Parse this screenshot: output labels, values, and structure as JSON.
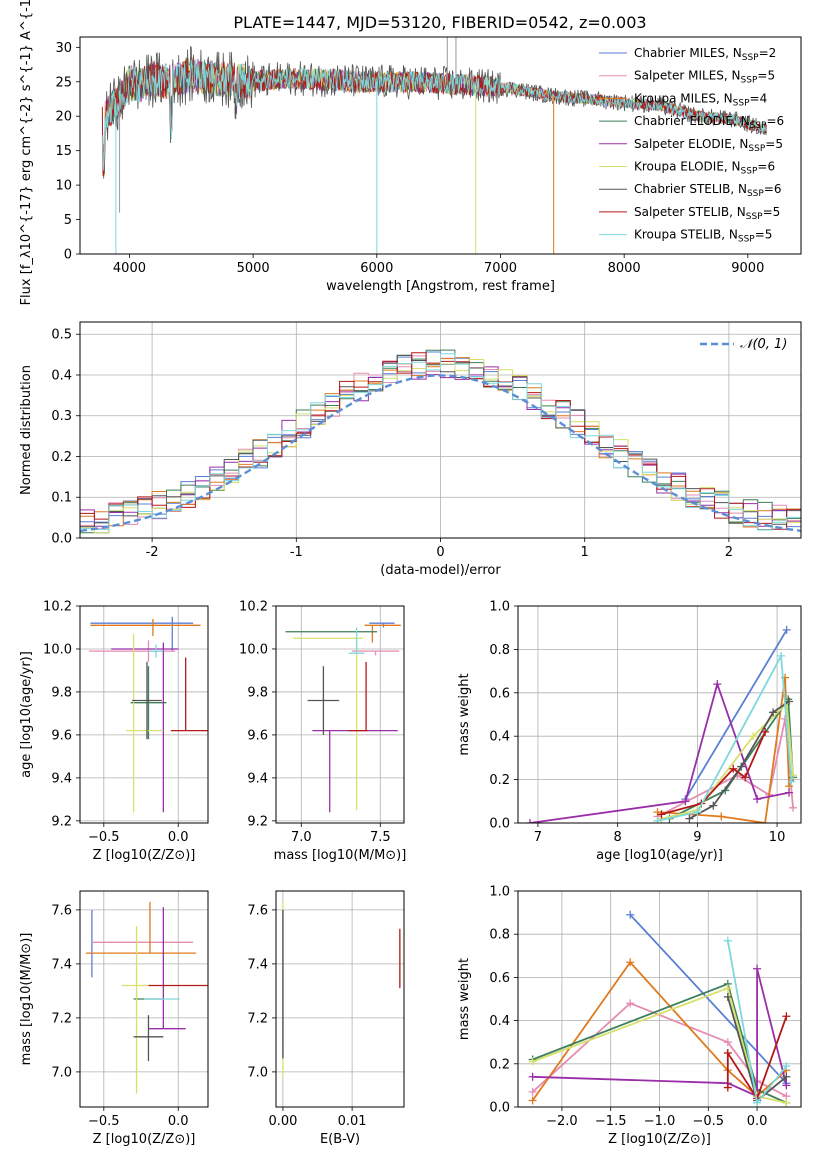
{
  "figure": {
    "title": "PLATE=1447, MJD=53120, FIBERID=0542, z=0.003"
  },
  "chart_data": [
    {
      "id": "spectrum",
      "type": "line",
      "xlabel": "wavelength [Angstrom, rest frame]",
      "ylabel": "Flux [f_λ10^{-17} erg cm^{-2} s^{-1} A^{-1}]",
      "xlim": [
        3600,
        9430
      ],
      "ylim": [
        0,
        31.5
      ],
      "xticks": [
        4000,
        5000,
        6000,
        7000,
        8000,
        9000
      ],
      "yticks": [
        0,
        5,
        10,
        15,
        20,
        25,
        30
      ],
      "grid": false,
      "legend_position": "top-right",
      "series": [
        {
          "name": "Chabrier MILES, N_SSP=2",
          "color": "#5a7fd6"
        },
        {
          "name": "Salpeter MILES, N_SSP=5",
          "color": "#e58cb2"
        },
        {
          "name": "Kroupa MILES, N_SSP=4",
          "color": "#e07a1f"
        },
        {
          "name": "Chabrier ELODIE, N_SSP=6",
          "color": "#3c7f58"
        },
        {
          "name": "Salpeter ELODIE, N_SSP=5",
          "color": "#9a2ea8"
        },
        {
          "name": "Kroupa ELODIE, N_SSP=6",
          "color": "#d6e06a"
        },
        {
          "name": "Chabrier STELIB, N_SSP=6",
          "color": "#555555"
        },
        {
          "name": "Salpeter STELIB, N_SSP=5",
          "color": "#b51818"
        },
        {
          "name": "Kroupa STELIB, N_SSP=5",
          "color": "#7fd8dc"
        }
      ],
      "continuum": {
        "x": [
          3780,
          3850,
          3950,
          4000,
          4100,
          4200,
          4300,
          4500,
          4700,
          5000,
          5300,
          5600,
          5900,
          6200,
          6500,
          6800,
          7100,
          7400,
          7700,
          8000,
          8300,
          8600,
          8900,
          9150
        ],
        "y": [
          19,
          21,
          23,
          25,
          24.5,
          25.5,
          25,
          26,
          25.5,
          25,
          25.5,
          25.3,
          25,
          25,
          24.8,
          24.5,
          24,
          23,
          22.5,
          22,
          21.5,
          20,
          19.5,
          18
        ]
      },
      "spikes": [
        {
          "x": 3890,
          "y": 0
        },
        {
          "x": 3920,
          "y": 6
        },
        {
          "x": 6000,
          "y": 0
        },
        {
          "x": 6800,
          "y": 0
        },
        {
          "x": 7430,
          "y": 0
        },
        {
          "x": 6570,
          "y": 31.5
        },
        {
          "x": 6640,
          "y": 31.5
        }
      ]
    },
    {
      "id": "residuals",
      "type": "bar",
      "xlabel": "(data-model)/error",
      "ylabel": "Normed distribution",
      "xlim": [
        -2.5,
        2.5
      ],
      "ylim": [
        0,
        0.53
      ],
      "xticks": [
        -2,
        -1,
        0,
        1,
        2
      ],
      "yticks": [
        0,
        0.1,
        0.2,
        0.3,
        0.4,
        0.5
      ],
      "grid": true,
      "legend_position": "top-right",
      "legend": "𝒩(0, 1)",
      "gaussian_color": "#5a8fd6",
      "bin_width": 0.1
    },
    {
      "id": "age-vs-Z",
      "type": "scatter",
      "xlabel": "Z [log10(Z/Z⊙)]",
      "ylabel": "age  [log10(age/yr)]",
      "xlim": [
        -0.66,
        0.2
      ],
      "ylim": [
        9.19,
        10.2
      ],
      "xticks": [
        -0.5,
        0.0
      ],
      "xtick_labels": [
        "−0.5",
        "0.0"
      ],
      "yticks": [
        9.2,
        9.4,
        9.6,
        9.8,
        10.0,
        10.2
      ],
      "grid": true,
      "points": [
        {
          "x": -0.04,
          "xerr": [
            0.55,
            0.14
          ],
          "y": 10.12,
          "yerr": [
            0.13,
            0.03
          ],
          "color": "#5a7fd6"
        },
        {
          "x": -0.2,
          "xerr": [
            0.4,
            0.18
          ],
          "y": 9.99,
          "yerr": [
            0.05,
            0.05
          ],
          "color": "#e58cb2"
        },
        {
          "x": -0.17,
          "xerr": [
            0.42,
            0.32
          ],
          "y": 10.11,
          "yerr": [
            0.05,
            0.03
          ],
          "color": "#e07a1f"
        },
        {
          "x": -0.2,
          "xerr": [
            0.12,
            0.12
          ],
          "y": 9.75,
          "yerr": [
            0.17,
            0.17
          ],
          "color": "#3c7f58"
        },
        {
          "x": -0.1,
          "xerr": [
            0.35,
            0.1
          ],
          "y": 10.0,
          "yerr": [
            0.76,
            0.03
          ],
          "color": "#9a2ea8"
        },
        {
          "x": -0.3,
          "xerr": [
            0.05,
            0.2
          ],
          "y": 9.62,
          "yerr": [
            0.38,
            0.45
          ],
          "color": "#d6e06a"
        },
        {
          "x": -0.21,
          "xerr": [
            0.1,
            0.1
          ],
          "y": 9.76,
          "yerr": [
            0.18,
            0.18
          ],
          "color": "#555555"
        },
        {
          "x": 0.05,
          "xerr": [
            0.1,
            0.15
          ],
          "y": 9.62,
          "yerr": [
            0.0,
            0.34
          ],
          "color": "#b51818"
        },
        {
          "x": -0.15,
          "xerr": [
            0.05,
            0.05
          ],
          "y": 9.99,
          "yerr": [
            0.03,
            0.03
          ],
          "color": "#7fd8dc"
        }
      ]
    },
    {
      "id": "age-vs-mass",
      "type": "scatter",
      "xlabel": "mass [log10(M/M⊙)]",
      "ylabel": "",
      "xlim": [
        6.84,
        7.65
      ],
      "ylim": [
        9.19,
        10.2
      ],
      "xticks": [
        7.0,
        7.5
      ],
      "xtick_labels": [
        "7.0",
        "7.5"
      ],
      "yticks": [
        9.2,
        9.4,
        9.6,
        9.8,
        10.0,
        10.2
      ],
      "grid": true,
      "points": [
        {
          "x": 7.52,
          "xerr": [
            0.09,
            0.07
          ],
          "y": 10.12,
          "yerr": [
            0.02,
            0.0
          ],
          "color": "#5a7fd6"
        },
        {
          "x": 7.47,
          "xerr": [
            0.15,
            0.15
          ],
          "y": 9.99,
          "yerr": [
            0.02,
            0.0
          ],
          "color": "#e58cb2"
        },
        {
          "x": 7.45,
          "xerr": [
            0.05,
            0.18
          ],
          "y": 10.11,
          "yerr": [
            0.08,
            0.0
          ],
          "color": "#e07a1f"
        },
        {
          "x": 7.18,
          "xerr": [
            0.28,
            0.3
          ],
          "y": 10.08,
          "yerr": [
            0.0,
            0.0
          ],
          "color": "#3c7f58"
        },
        {
          "x": 7.18,
          "xerr": [
            0.11,
            0.43
          ],
          "y": 9.62,
          "yerr": [
            0.38,
            0.0
          ],
          "color": "#9a2ea8"
        },
        {
          "x": 7.35,
          "xerr": [
            0.4,
            0.04
          ],
          "y": 10.05,
          "yerr": [
            0.8,
            0.0
          ],
          "color": "#d6e06a"
        },
        {
          "x": 7.14,
          "xerr": [
            0.1,
            0.1
          ],
          "y": 9.76,
          "yerr": [
            0.16,
            0.16
          ],
          "color": "#555555"
        },
        {
          "x": 7.41,
          "xerr": [
            0.11,
            0.01
          ],
          "y": 9.62,
          "yerr": [
            0.0,
            0.32
          ],
          "color": "#b51818"
        },
        {
          "x": 7.35,
          "xerr": [
            0.05,
            0.05
          ],
          "y": 9.98,
          "yerr": [
            0.0,
            0.12
          ],
          "color": "#7fd8dc"
        }
      ]
    },
    {
      "id": "massweight-vs-age",
      "type": "line",
      "xlabel": "age  [log10(age/yr)]",
      "ylabel": "mass weight",
      "xlim": [
        6.75,
        10.3
      ],
      "ylim": [
        0,
        1.0
      ],
      "xticks": [
        7,
        8,
        9,
        10
      ],
      "yticks": [
        0,
        0.2,
        0.4,
        0.6,
        0.8,
        1.0
      ],
      "grid": true,
      "series": [
        {
          "color": "#5a7fd6",
          "x": [
            8.85,
            10.12
          ],
          "y": [
            0.11,
            0.89
          ]
        },
        {
          "color": "#e58cb2",
          "x": [
            8.5,
            9.5,
            9.9,
            10.1,
            10.2
          ],
          "y": [
            0.03,
            0.22,
            0.13,
            0.48,
            0.07
          ]
        },
        {
          "color": "#e07a1f",
          "x": [
            8.5,
            9.3,
            9.85,
            10.1,
            10.15
          ],
          "y": [
            0.05,
            0.03,
            0.0,
            0.67,
            0.17
          ]
        },
        {
          "color": "#3c7f58",
          "x": [
            8.65,
            9.35,
            10.14,
            10.2
          ],
          "y": [
            0.02,
            0.15,
            0.57,
            0.21
          ]
        },
        {
          "color": "#9a2ea8",
          "x": [
            6.9,
            8.85,
            9.25,
            9.75,
            10.15
          ],
          "y": [
            0.0,
            0.1,
            0.64,
            0.11,
            0.14
          ]
        },
        {
          "color": "#d6e06a",
          "x": [
            8.55,
            9.0,
            9.7,
            10.12,
            10.2
          ],
          "y": [
            0.02,
            0.06,
            0.4,
            0.55,
            0.22
          ]
        },
        {
          "color": "#555555",
          "x": [
            8.9,
            9.2,
            9.55,
            9.95,
            10.15
          ],
          "y": [
            0.02,
            0.08,
            0.26,
            0.51,
            0.56
          ]
        },
        {
          "color": "#b51818",
          "x": [
            8.55,
            9.05,
            9.45,
            9.6,
            9.85
          ],
          "y": [
            0.04,
            0.09,
            0.25,
            0.21,
            0.42
          ]
        },
        {
          "color": "#7fd8dc",
          "x": [
            8.5,
            9.0,
            10.05,
            10.18
          ],
          "y": [
            0.01,
            0.05,
            0.77,
            0.19
          ]
        }
      ]
    },
    {
      "id": "mass-vs-Z",
      "type": "scatter",
      "xlabel": "Z [log10(Z/Z⊙)]",
      "ylabel": "mass [log10(M/M⊙)]",
      "xlim": [
        -0.66,
        0.2
      ],
      "ylim": [
        6.87,
        7.67
      ],
      "xticks": [
        -0.5,
        0.0
      ],
      "xtick_labels": [
        "−0.5",
        "0.0"
      ],
      "yticks": [
        7.0,
        7.2,
        7.4,
        7.6
      ],
      "grid": true,
      "points": [
        {
          "x": -0.58,
          "xerr": [
            0.0,
            0.0
          ],
          "y": 7.47,
          "yerr": [
            0.12,
            0.13
          ],
          "color": "#5a7fd6"
        },
        {
          "x": -0.26,
          "xerr": [
            0.32,
            0.36
          ],
          "y": 7.48,
          "yerr": [
            0.0,
            0.0
          ],
          "color": "#e58cb2"
        },
        {
          "x": -0.19,
          "xerr": [
            0.43,
            0.31
          ],
          "y": 7.44,
          "yerr": [
            0.0,
            0.19
          ],
          "color": "#e07a1f"
        },
        {
          "x": -0.2,
          "xerr": [
            0.1,
            0.1
          ],
          "y": 7.27,
          "yerr": [
            0.0,
            0.0
          ],
          "color": "#3c7f58"
        },
        {
          "x": -0.1,
          "xerr": [
            0.1,
            0.15
          ],
          "y": 7.16,
          "yerr": [
            0.0,
            0.45
          ],
          "color": "#9a2ea8"
        },
        {
          "x": -0.28,
          "xerr": [
            0.1,
            0.1
          ],
          "y": 7.32,
          "yerr": [
            0.4,
            0.22
          ],
          "color": "#d6e06a"
        },
        {
          "x": -0.2,
          "xerr": [
            0.1,
            0.1
          ],
          "y": 7.13,
          "yerr": [
            0.09,
            0.08
          ],
          "color": "#555555"
        },
        {
          "x": 0.06,
          "xerr": [
            0.26,
            0.14
          ],
          "y": 7.32,
          "yerr": [
            0.0,
            0.0
          ],
          "color": "#b51818"
        },
        {
          "x": -0.13,
          "xerr": [
            0.1,
            0.14
          ],
          "y": 7.27,
          "yerr": [
            0.0,
            0.0
          ],
          "color": "#7fd8dc"
        }
      ]
    },
    {
      "id": "mass-vs-EBV",
      "type": "scatter",
      "xlabel": "E(B-V)",
      "ylabel": "",
      "xlim": [
        -0.001,
        0.0175
      ],
      "ylim": [
        6.87,
        7.67
      ],
      "xticks": [
        0.0,
        0.01
      ],
      "xtick_labels": [
        "0.00",
        "0.01"
      ],
      "yticks": [
        7.0,
        7.2,
        7.4,
        7.6
      ],
      "grid": true,
      "points": [
        {
          "x": 0.0,
          "y": 7.33,
          "yerr": [
            0.35,
            0.3
          ],
          "color": "#d6e06a"
        },
        {
          "x": 0.0,
          "y": 7.4,
          "yerr": [
            0.34,
            0.2
          ],
          "color": "#e58cb2"
        },
        {
          "x": 0.0,
          "y": 7.35,
          "yerr": [
            0.3,
            0.25
          ],
          "color": "#7fd8dc"
        },
        {
          "x": 0.0,
          "y": 7.3,
          "yerr": [
            0.25,
            0.3
          ],
          "color": "#555555"
        },
        {
          "x": 0.0169,
          "y": 7.42,
          "yerr": [
            0.11,
            0.11
          ],
          "color": "#b51818"
        }
      ]
    },
    {
      "id": "massweight-vs-Z",
      "type": "line",
      "xlabel": "Z [log10(Z/Z⊙)]",
      "ylabel": "mass weight",
      "xlim": [
        -2.45,
        0.45
      ],
      "ylim": [
        0,
        1.0
      ],
      "xticks": [
        -2.0,
        -1.5,
        -1.0,
        -0.5,
        0.0
      ],
      "xtick_labels": [
        "−2.0",
        "−1.5",
        "−1.0",
        "−0.5",
        "0.0"
      ],
      "yticks": [
        0,
        0.2,
        0.4,
        0.6,
        0.8,
        1.0
      ],
      "grid": true,
      "series": [
        {
          "color": "#5a7fd6",
          "x": [
            -1.3,
            0.3
          ],
          "y": [
            0.89,
            0.11
          ]
        },
        {
          "color": "#e58cb2",
          "x": [
            -2.3,
            -1.3,
            -0.3,
            0.0,
            0.3
          ],
          "y": [
            0.07,
            0.48,
            0.3,
            0.12,
            0.05
          ]
        },
        {
          "color": "#e07a1f",
          "x": [
            -2.3,
            -1.3,
            -0.3,
            0.0,
            0.3
          ],
          "y": [
            0.03,
            0.67,
            0.17,
            0.05,
            0.17
          ]
        },
        {
          "color": "#3c7f58",
          "x": [
            -2.3,
            -0.3,
            0.0,
            0.3
          ],
          "y": [
            0.22,
            0.57,
            0.08,
            0.02
          ]
        },
        {
          "color": "#9a2ea8",
          "x": [
            -2.3,
            -0.3,
            0.0,
            0.0,
            0.3
          ],
          "y": [
            0.14,
            0.11,
            0.05,
            0.64,
            0.1
          ]
        },
        {
          "color": "#d6e06a",
          "x": [
            -2.3,
            -0.3,
            0.0,
            0.3
          ],
          "y": [
            0.21,
            0.55,
            0.05,
            0.02
          ]
        },
        {
          "color": "#555555",
          "x": [
            -0.3,
            0.0,
            0.3
          ],
          "y": [
            0.51,
            0.03,
            0.14
          ]
        },
        {
          "color": "#b51818",
          "x": [
            -0.3,
            -0.3,
            0.0,
            0.3
          ],
          "y": [
            0.09,
            0.25,
            0.04,
            0.42
          ]
        },
        {
          "color": "#7fd8dc",
          "x": [
            -0.3,
            0.0,
            0.3
          ],
          "y": [
            0.77,
            0.02,
            0.19
          ]
        }
      ]
    }
  ]
}
